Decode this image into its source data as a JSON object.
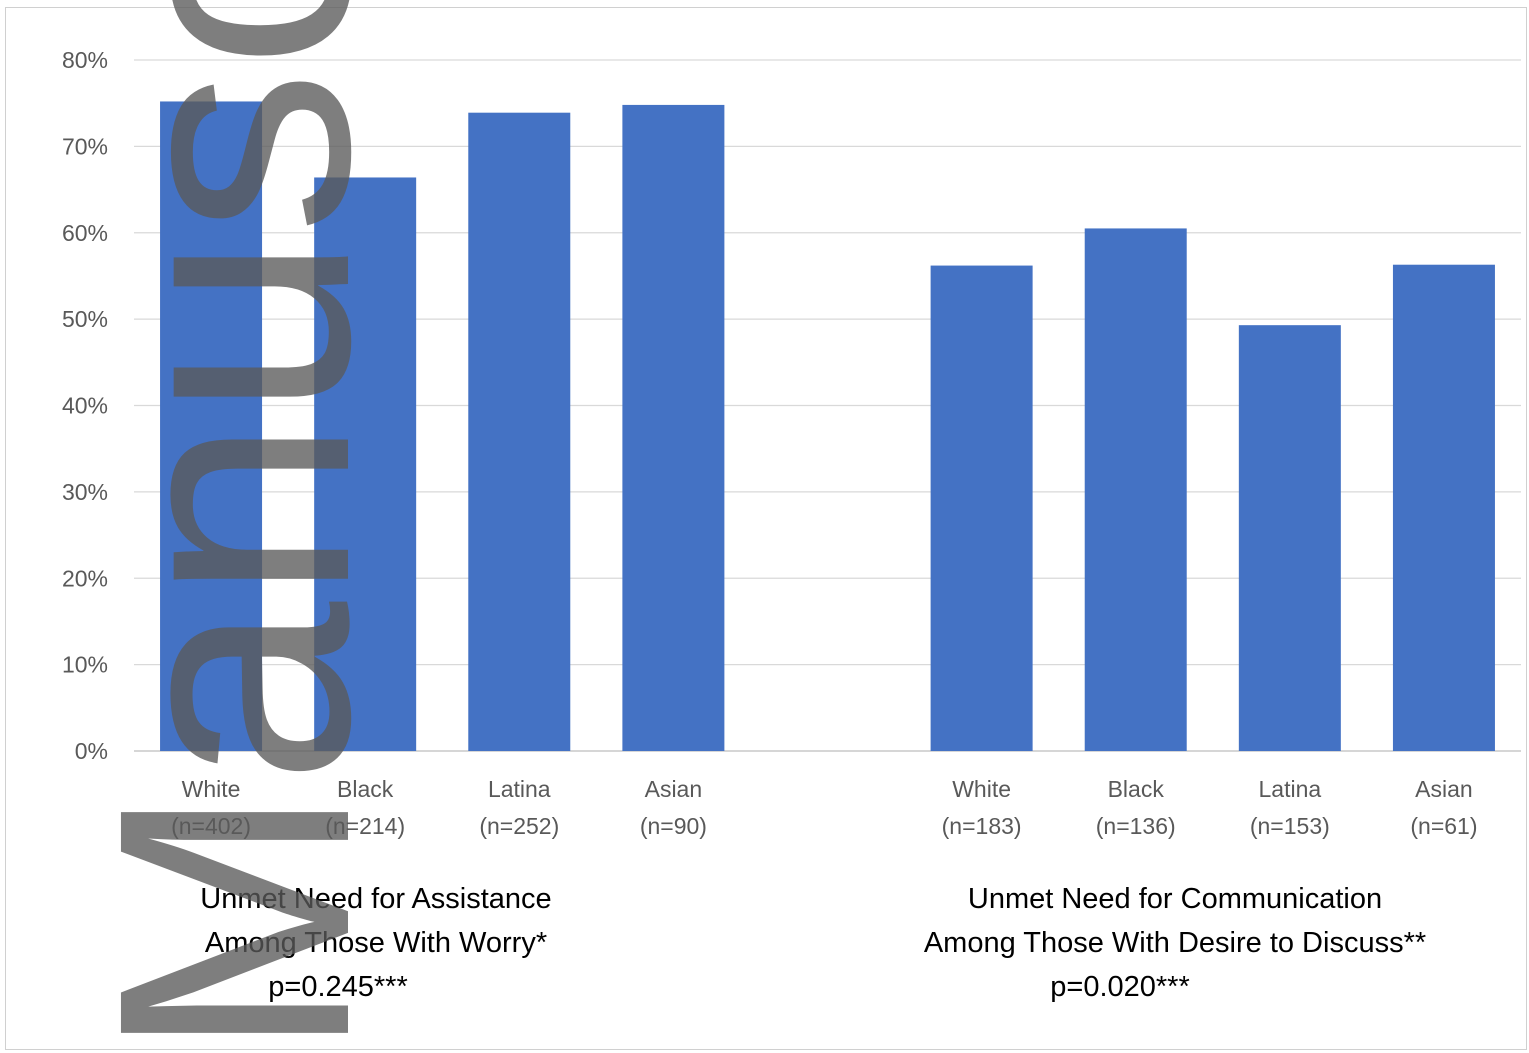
{
  "chart_data": {
    "type": "bar",
    "ylim": [
      0,
      80
    ],
    "y_ticks": [
      "0%",
      "10%",
      "20%",
      "30%",
      "40%",
      "50%",
      "60%",
      "70%",
      "80%"
    ],
    "grid": true,
    "bar_color": "#4472C4",
    "groups": [
      {
        "title_lines": [
          "Unmet Need for Assistance",
          "Among Those With Worry*",
          "p=0.245***"
        ],
        "categories": [
          {
            "name": "White",
            "n": "(n=402)"
          },
          {
            "name": "Black",
            "n": "(n=214)"
          },
          {
            "name": "Latina",
            "n": "(n=252)"
          },
          {
            "name": "Asian",
            "n": "(n=90)"
          }
        ],
        "values": [
          75.2,
          66.4,
          73.9,
          74.8
        ]
      },
      {
        "title_lines": [
          "Unmet Need for Communication",
          "Among Those With Desire to Discuss**",
          "p=0.020***"
        ],
        "categories": [
          {
            "name": "White",
            "n": "(n=183)"
          },
          {
            "name": "Black",
            "n": "(n=136)"
          },
          {
            "name": "Latina",
            "n": "(n=153)"
          },
          {
            "name": "Asian",
            "n": "(n=61)"
          }
        ],
        "values": [
          56.2,
          60.5,
          49.3,
          56.3
        ]
      }
    ]
  },
  "watermark": "Manuscript"
}
